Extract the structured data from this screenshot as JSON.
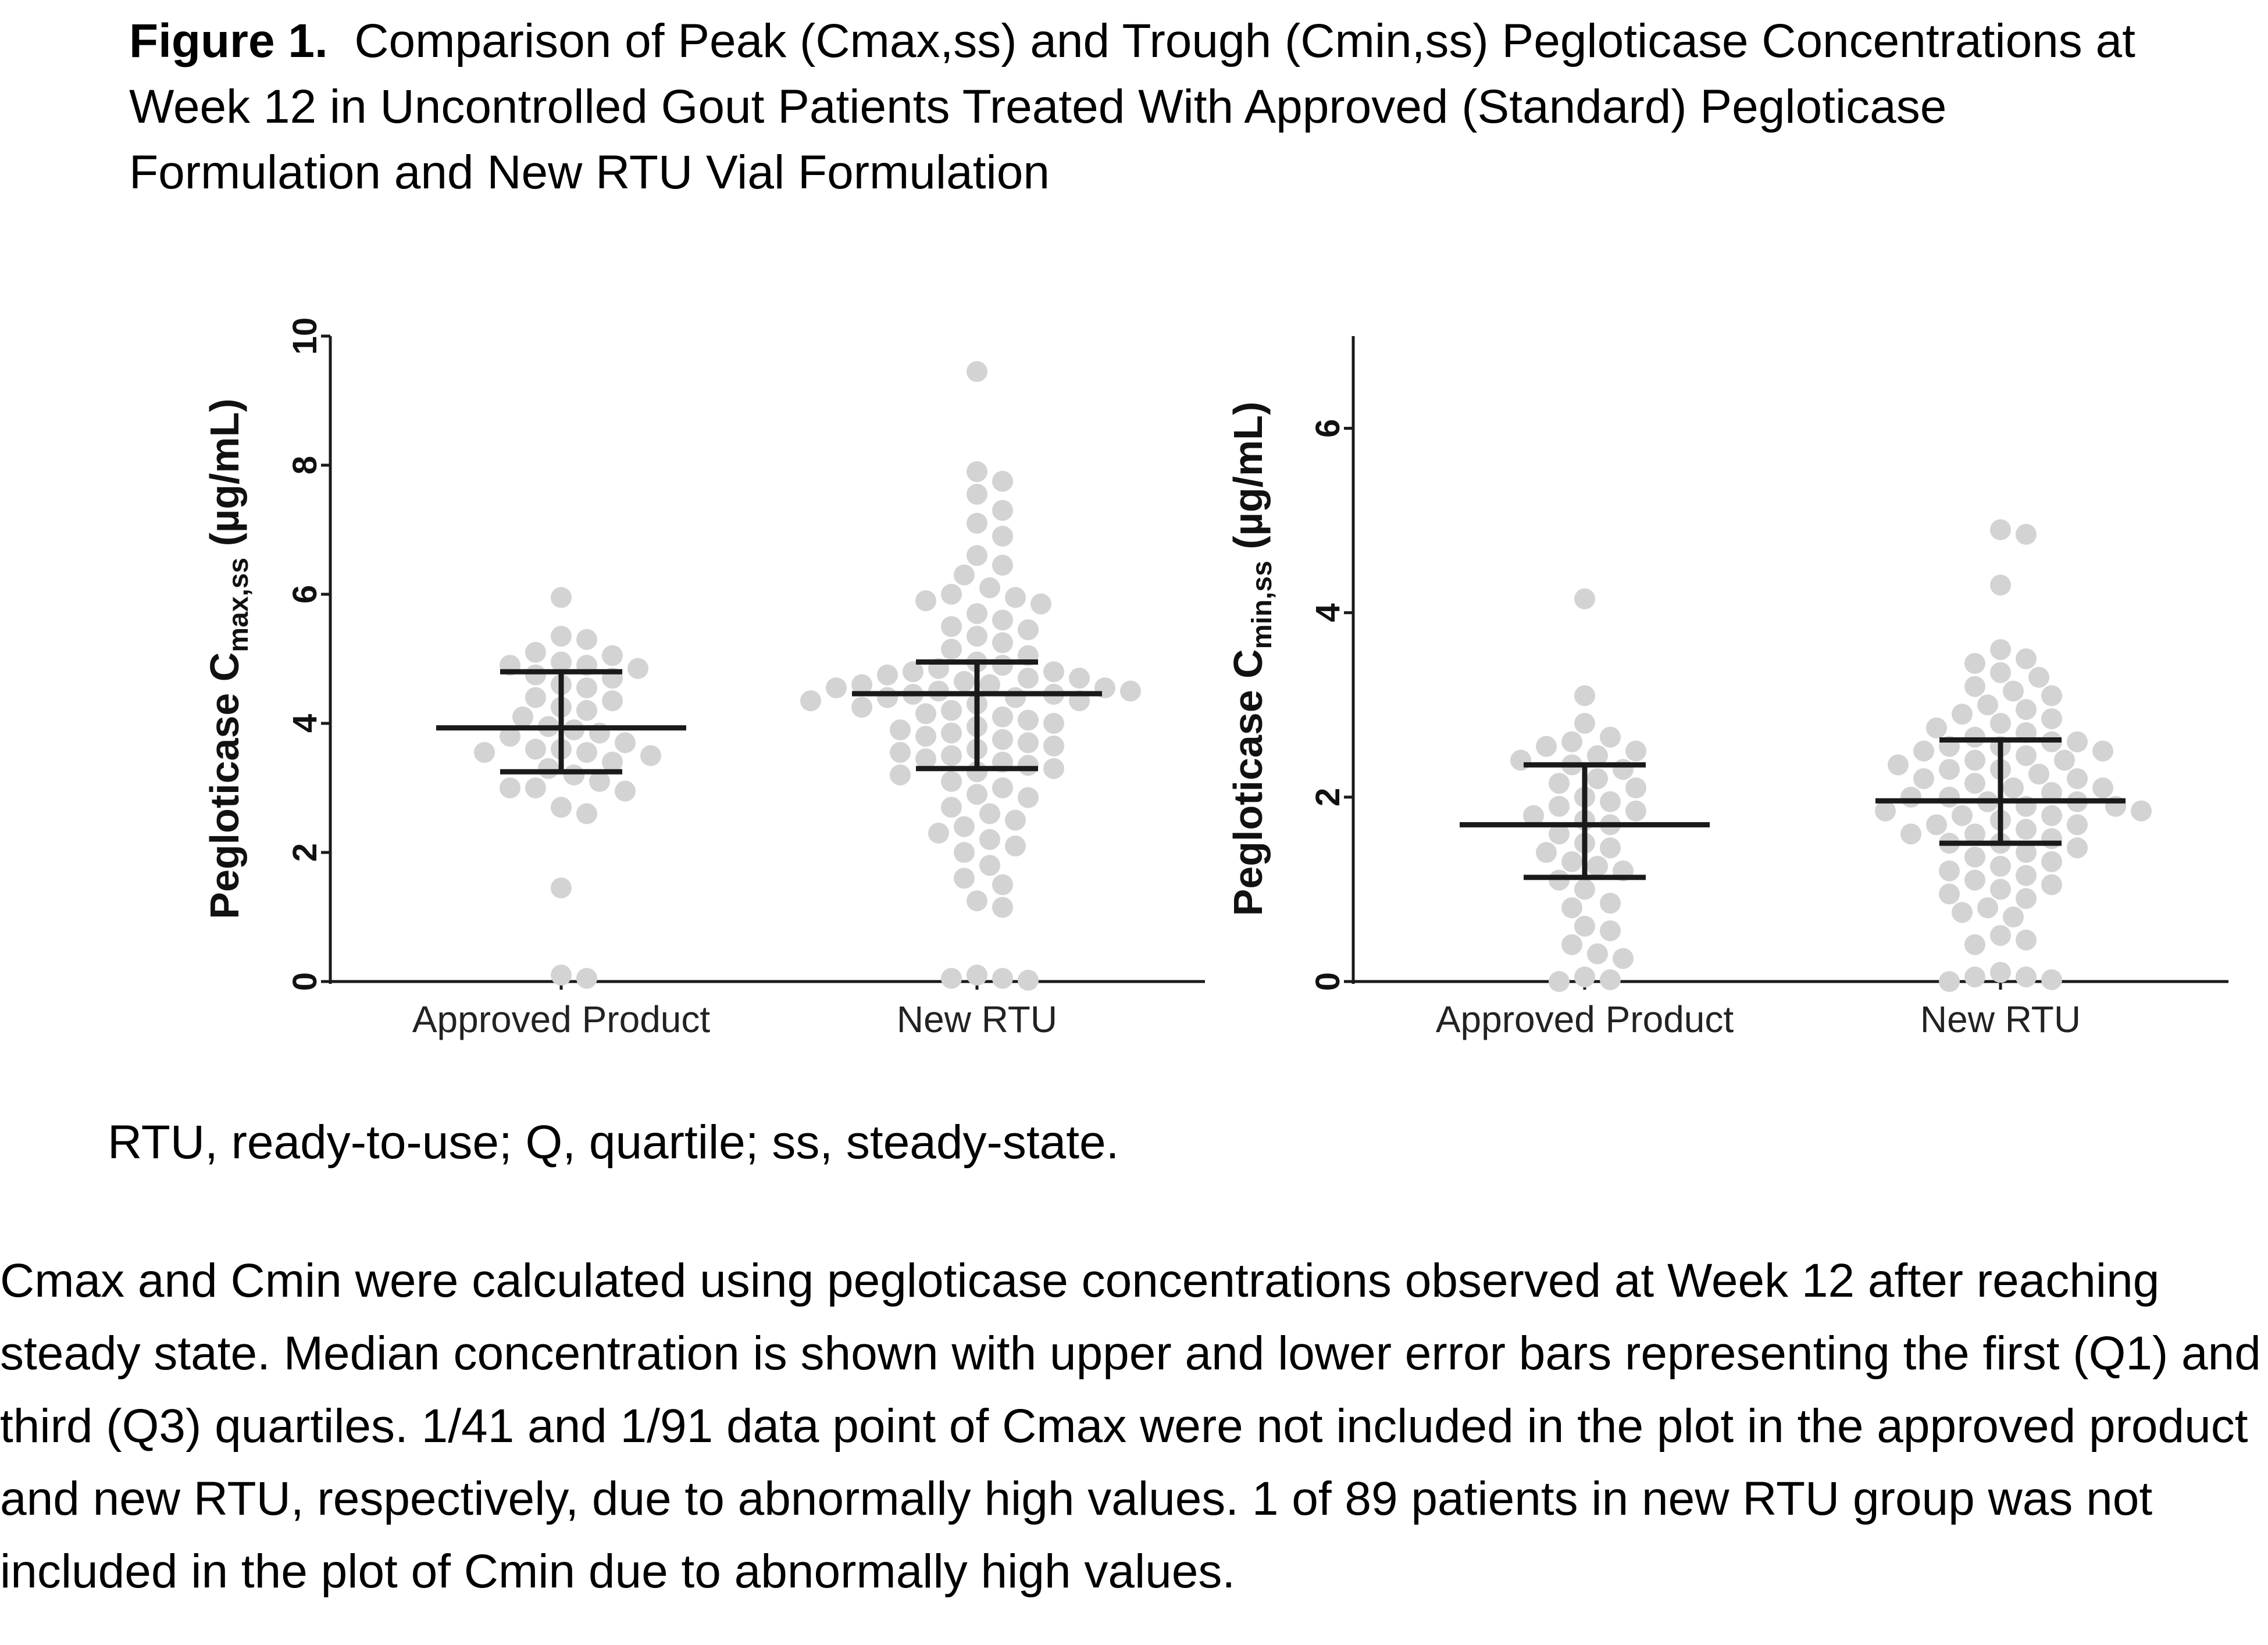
{
  "figure": {
    "title_lead": "Figure 1.",
    "title_text": "Comparison of Peak (Cmax,ss) and Trough (Cmin,ss) Pegloticase Concentrations at Week 12 in Uncontrolled Gout Patients Treated With Approved (Standard) Pegloticase Formulation and New RTU Vial Formulation",
    "abbreviations": "RTU, ready-to-use; Q, quartile; ss, steady-state.",
    "footnote": "Cmax and Cmin were calculated using pegloticase concentrations observed at Week 12 after reaching steady state. Median concentration is shown with upper and lower error bars representing the first (Q1) and third (Q3) quartiles. 1/41 and 1/91 data point of Cmax were not included in the plot in the approved product and new RTU, respectively, due to abnormally high values. 1 of 89 patients in new RTU group was not included in the plot of Cmin due to abnormally high values."
  },
  "colors": {
    "points": "#d3d3d3",
    "lines": "#1a1a1a"
  },
  "chart_data": [
    {
      "type": "scatter",
      "ylabel_main": "Pegloticase C",
      "ylabel_sub": "max,ss",
      "ylabel_unit": " (µg/mL)",
      "ylim": [
        0,
        10
      ],
      "yticks": [
        0,
        2,
        4,
        6,
        8,
        10
      ],
      "categories": [
        "Approved Product",
        "New RTU"
      ],
      "groups": [
        {
          "category": "Approved Product",
          "median": 3.93,
          "q1": 3.25,
          "q3": 4.8,
          "points": [
            5.95,
            5.35,
            5.3,
            5.1,
            5.05,
            4.95,
            4.9,
            4.9,
            4.85,
            4.75,
            4.7,
            4.6,
            4.55,
            4.4,
            4.35,
            4.25,
            4.2,
            4.1,
            3.95,
            3.9,
            3.85,
            3.8,
            3.7,
            3.6,
            3.6,
            3.55,
            3.55,
            3.5,
            3.4,
            3.3,
            3.2,
            3.1,
            3.0,
            3.0,
            2.95,
            2.7,
            2.6,
            1.45,
            0.1,
            0.05
          ]
        },
        {
          "category": "New RTU",
          "median": 4.46,
          "q1": 3.3,
          "q3": 4.95,
          "points": [
            9.45,
            7.9,
            7.75,
            7.55,
            7.3,
            7.1,
            6.9,
            6.6,
            6.45,
            6.3,
            6.1,
            6.0,
            5.95,
            5.9,
            5.85,
            5.7,
            5.6,
            5.5,
            5.45,
            5.35,
            5.25,
            5.15,
            5.05,
            4.95,
            4.9,
            4.85,
            4.8,
            4.8,
            4.75,
            4.7,
            4.7,
            4.65,
            4.6,
            4.6,
            4.55,
            4.55,
            4.5,
            4.5,
            4.45,
            4.45,
            4.4,
            4.4,
            4.35,
            4.35,
            4.3,
            4.25,
            4.2,
            4.15,
            4.1,
            4.05,
            4.0,
            3.95,
            3.9,
            3.85,
            3.8,
            3.75,
            3.7,
            3.65,
            3.6,
            3.55,
            3.5,
            3.45,
            3.4,
            3.35,
            3.3,
            3.25,
            3.2,
            3.1,
            3.0,
            2.9,
            2.85,
            2.7,
            2.6,
            2.5,
            2.4,
            2.3,
            2.2,
            2.1,
            2.0,
            1.8,
            1.6,
            1.5,
            1.25,
            1.15,
            0.1,
            0.05,
            0.05,
            0.02
          ]
        }
      ]
    },
    {
      "type": "scatter",
      "ylabel_main": "Pegloticase C",
      "ylabel_sub": "min,ss",
      "ylabel_unit": " (µg/mL)",
      "ylim": [
        0,
        7
      ],
      "yticks": [
        0,
        2,
        4,
        6
      ],
      "categories": [
        "Approved Product",
        "New RTU"
      ],
      "groups": [
        {
          "category": "Approved Product",
          "median": 1.7,
          "q1": 1.13,
          "q3": 2.35,
          "points": [
            4.15,
            3.1,
            2.8,
            2.65,
            2.6,
            2.55,
            2.5,
            2.45,
            2.4,
            2.35,
            2.3,
            2.2,
            2.15,
            2.1,
            2.0,
            1.95,
            1.9,
            1.85,
            1.8,
            1.75,
            1.7,
            1.6,
            1.5,
            1.45,
            1.4,
            1.3,
            1.25,
            1.2,
            1.1,
            1.0,
            0.85,
            0.8,
            0.6,
            0.55,
            0.4,
            0.3,
            0.25,
            0.05,
            0.02,
            0.0
          ]
        },
        {
          "category": "New RTU",
          "median": 1.96,
          "q1": 1.5,
          "q3": 2.62,
          "points": [
            4.9,
            4.85,
            4.3,
            3.6,
            3.5,
            3.45,
            3.35,
            3.3,
            3.2,
            3.15,
            3.1,
            3.0,
            2.95,
            2.9,
            2.85,
            2.8,
            2.75,
            2.7,
            2.65,
            2.6,
            2.6,
            2.55,
            2.55,
            2.5,
            2.5,
            2.45,
            2.4,
            2.4,
            2.35,
            2.3,
            2.3,
            2.25,
            2.2,
            2.2,
            2.15,
            2.1,
            2.1,
            2.05,
            2.0,
            2.0,
            1.95,
            1.95,
            1.9,
            1.9,
            1.85,
            1.85,
            1.8,
            1.8,
            1.75,
            1.7,
            1.7,
            1.65,
            1.6,
            1.6,
            1.55,
            1.5,
            1.5,
            1.45,
            1.4,
            1.35,
            1.3,
            1.25,
            1.2,
            1.15,
            1.1,
            1.05,
            1.0,
            0.95,
            0.9,
            0.8,
            0.75,
            0.7,
            0.5,
            0.45,
            0.4,
            0.1,
            0.05,
            0.05,
            0.02,
            0.0
          ]
        }
      ]
    }
  ]
}
